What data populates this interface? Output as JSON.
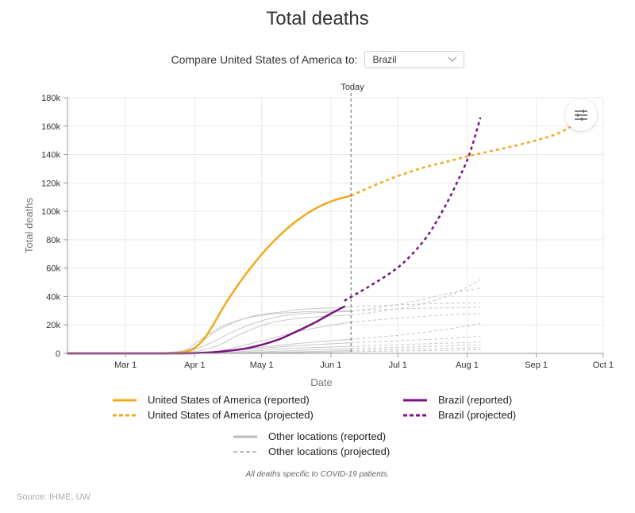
{
  "title": "Total deaths",
  "compare": {
    "label": "Compare United States of America to:",
    "selected": "Brazil"
  },
  "legend": {
    "us_reported": "United States of America (reported)",
    "us_projected": "United States of America (projected)",
    "brazil_reported": "Brazil (reported)",
    "brazil_projected": "Brazil (projected)",
    "other_reported": "Other locations (reported)",
    "other_projected": "Other locations (projected)"
  },
  "note": "All deaths specific to COVID-19 patients.",
  "source": "Source: IHME, UW",
  "colors": {
    "us": "#f2a91c",
    "brazil": "#7b1280",
    "other": "#c8c8c8",
    "grid": "#e9e9e9",
    "today": "#666666"
  },
  "chart_data": {
    "type": "line",
    "title": "Total deaths",
    "xlabel": "Date",
    "ylabel": "Total deaths",
    "ylim": [
      0,
      180000
    ],
    "xlim_day": [
      0,
      236
    ],
    "x_unit": "days since Feb 4, 2020",
    "y_ticks": [
      {
        "value": 0,
        "label": "0"
      },
      {
        "value": 20000,
        "label": "20k"
      },
      {
        "value": 40000,
        "label": "40k"
      },
      {
        "value": 60000,
        "label": "60k"
      },
      {
        "value": 80000,
        "label": "80k"
      },
      {
        "value": 100000,
        "label": "100k"
      },
      {
        "value": 120000,
        "label": "120k"
      },
      {
        "value": 140000,
        "label": "140k"
      },
      {
        "value": 160000,
        "label": "160k"
      },
      {
        "value": 180000,
        "label": "180k"
      }
    ],
    "x_ticks": [
      {
        "day": 26,
        "label": "Mar 1"
      },
      {
        "day": 57,
        "label": "Apr 1"
      },
      {
        "day": 87,
        "label": "May 1"
      },
      {
        "day": 118,
        "label": "Jun 1"
      },
      {
        "day": 148,
        "label": "Jul 1"
      },
      {
        "day": 179,
        "label": "Aug 1"
      },
      {
        "day": 210,
        "label": "Sep 1"
      },
      {
        "day": 240,
        "label": "Oct 1"
      }
    ],
    "today": {
      "day": 127,
      "label": "Today"
    },
    "grid": true,
    "series": [
      {
        "name": "United States of America (reported)",
        "key": "us",
        "style": "solid",
        "x": [
          0,
          40,
          50,
          55,
          58,
          62,
          66,
          70,
          75,
          80,
          85,
          90,
          95,
          100,
          105,
          110,
          115,
          120,
          127
        ],
        "y": [
          0,
          0,
          500,
          2000,
          5000,
          12000,
          22000,
          33000,
          45000,
          56000,
          66000,
          75000,
          83000,
          90000,
          96000,
          101000,
          105000,
          108000,
          111000
        ]
      },
      {
        "name": "United States of America (projected)",
        "key": "us",
        "style": "dashed",
        "x": [
          127,
          140,
          150,
          160,
          170,
          180,
          190,
          200,
          210,
          220,
          230,
          236
        ],
        "y": [
          111000,
          120000,
          126000,
          131000,
          135000,
          139000,
          142500,
          146000,
          150000,
          155000,
          164000,
          170000
        ]
      },
      {
        "name": "Brazil (reported)",
        "key": "brazil",
        "style": "solid",
        "x": [
          0,
          50,
          57,
          65,
          72,
          80,
          88,
          95,
          102,
          110,
          118,
          124
        ],
        "y": [
          0,
          0,
          200,
          800,
          1800,
          3500,
          6500,
          10000,
          15000,
          21000,
          28000,
          33000
        ]
      },
      {
        "name": "Brazil (projected)",
        "key": "brazil",
        "style": "dashed",
        "x": [
          124,
          135,
          145,
          152,
          160,
          165,
          170,
          175,
          180,
          185
        ],
        "y": [
          37000,
          47000,
          57000,
          66000,
          80000,
          92000,
          106000,
          122000,
          140000,
          166000
        ]
      }
    ],
    "other_reported": [
      {
        "x": [
          40,
          55,
          65,
          75,
          85,
          95,
          105,
          118,
          127
        ],
        "y": [
          0,
          3000,
          14000,
          22000,
          27000,
          29000,
          31000,
          32000,
          33000
        ]
      },
      {
        "x": [
          40,
          52,
          60,
          68,
          78,
          88,
          98,
          110,
          127
        ],
        "y": [
          0,
          2000,
          10000,
          18000,
          24000,
          27000,
          28500,
          29500,
          30000
        ]
      },
      {
        "x": [
          40,
          55,
          65,
          75,
          85,
          95,
          105,
          118,
          127
        ],
        "y": [
          0,
          2000,
          8000,
          16000,
          22000,
          26000,
          28000,
          29000,
          29500
        ]
      },
      {
        "x": [
          45,
          58,
          68,
          78,
          90,
          100,
          110,
          120,
          127
        ],
        "y": [
          0,
          1500,
          6000,
          14000,
          21000,
          24000,
          25500,
          26500,
          27000
        ]
      },
      {
        "x": [
          50,
          65,
          75,
          85,
          95,
          105,
          115,
          127
        ],
        "y": [
          0,
          1000,
          4000,
          8000,
          12000,
          16000,
          19000,
          22000
        ]
      },
      {
        "x": [
          55,
          70,
          85,
          100,
          115,
          127
        ],
        "y": [
          0,
          1500,
          4000,
          6500,
          8500,
          10000
        ]
      },
      {
        "x": [
          55,
          75,
          95,
          115,
          127
        ],
        "y": [
          0,
          2000,
          4500,
          6500,
          7500
        ]
      },
      {
        "x": [
          60,
          80,
          100,
          127
        ],
        "y": [
          0,
          1500,
          3500,
          5000
        ]
      },
      {
        "x": [
          60,
          85,
          110,
          127
        ],
        "y": [
          0,
          1000,
          2500,
          3500
        ]
      },
      {
        "x": [
          65,
          95,
          127
        ],
        "y": [
          0,
          800,
          2000
        ]
      },
      {
        "x": [
          70,
          100,
          127
        ],
        "y": [
          0,
          500,
          1200
        ]
      }
    ],
    "other_projected": [
      {
        "x": [
          127,
          145,
          165,
          185
        ],
        "y": [
          33000,
          34000,
          35000,
          35500
        ]
      },
      {
        "x": [
          127,
          145,
          165,
          185
        ],
        "y": [
          30000,
          31000,
          32000,
          32500
        ]
      },
      {
        "x": [
          127,
          150,
          170,
          185
        ],
        "y": [
          29500,
          35000,
          42000,
          46000
        ]
      },
      {
        "x": [
          127,
          150,
          170,
          185
        ],
        "y": [
          27000,
          32000,
          40000,
          52000
        ]
      },
      {
        "x": [
          127,
          150,
          170,
          185
        ],
        "y": [
          22000,
          25000,
          27000,
          28000
        ]
      },
      {
        "x": [
          127,
          150,
          170,
          185
        ],
        "y": [
          10000,
          13000,
          17000,
          21000
        ]
      },
      {
        "x": [
          127,
          150,
          170,
          185
        ],
        "y": [
          7500,
          9000,
          10500,
          12000
        ]
      },
      {
        "x": [
          127,
          155,
          185
        ],
        "y": [
          5000,
          6500,
          8000
        ]
      },
      {
        "x": [
          127,
          155,
          185
        ],
        "y": [
          3500,
          4500,
          6000
        ]
      },
      {
        "x": [
          127,
          155,
          185
        ],
        "y": [
          2000,
          3000,
          4000
        ]
      },
      {
        "x": [
          127,
          155,
          185
        ],
        "y": [
          1200,
          1800,
          2500
        ]
      }
    ]
  }
}
